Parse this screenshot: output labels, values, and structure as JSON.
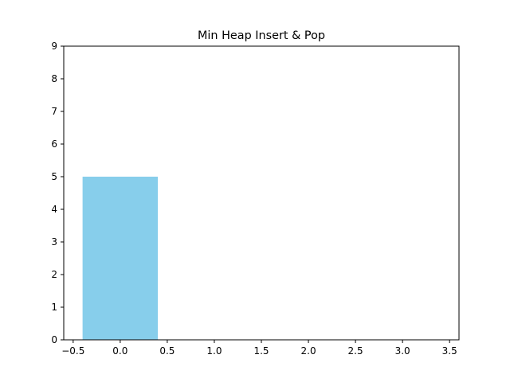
{
  "chart_data": {
    "type": "bar",
    "title": "Min Heap Insert & Pop",
    "xlabel": "",
    "ylabel": "",
    "bars": [
      {
        "x": 0,
        "width": 0.8,
        "value": 5
      }
    ],
    "xlim": [
      -0.6,
      3.6
    ],
    "ylim": [
      0,
      9
    ],
    "x_ticks": [
      -0.5,
      0.0,
      0.5,
      1.0,
      1.5,
      2.0,
      2.5,
      3.0,
      3.5
    ],
    "x_tick_labels": [
      "−0.5",
      "0.0",
      "0.5",
      "1.0",
      "1.5",
      "2.0",
      "2.5",
      "3.0",
      "3.5"
    ],
    "y_ticks": [
      0,
      1,
      2,
      3,
      4,
      5,
      6,
      7,
      8,
      9
    ],
    "y_tick_labels": [
      "0",
      "1",
      "2",
      "3",
      "4",
      "5",
      "6",
      "7",
      "8",
      "9"
    ],
    "grid": false,
    "colors": {
      "bar": "#87ceeb",
      "axis": "#000000"
    }
  }
}
